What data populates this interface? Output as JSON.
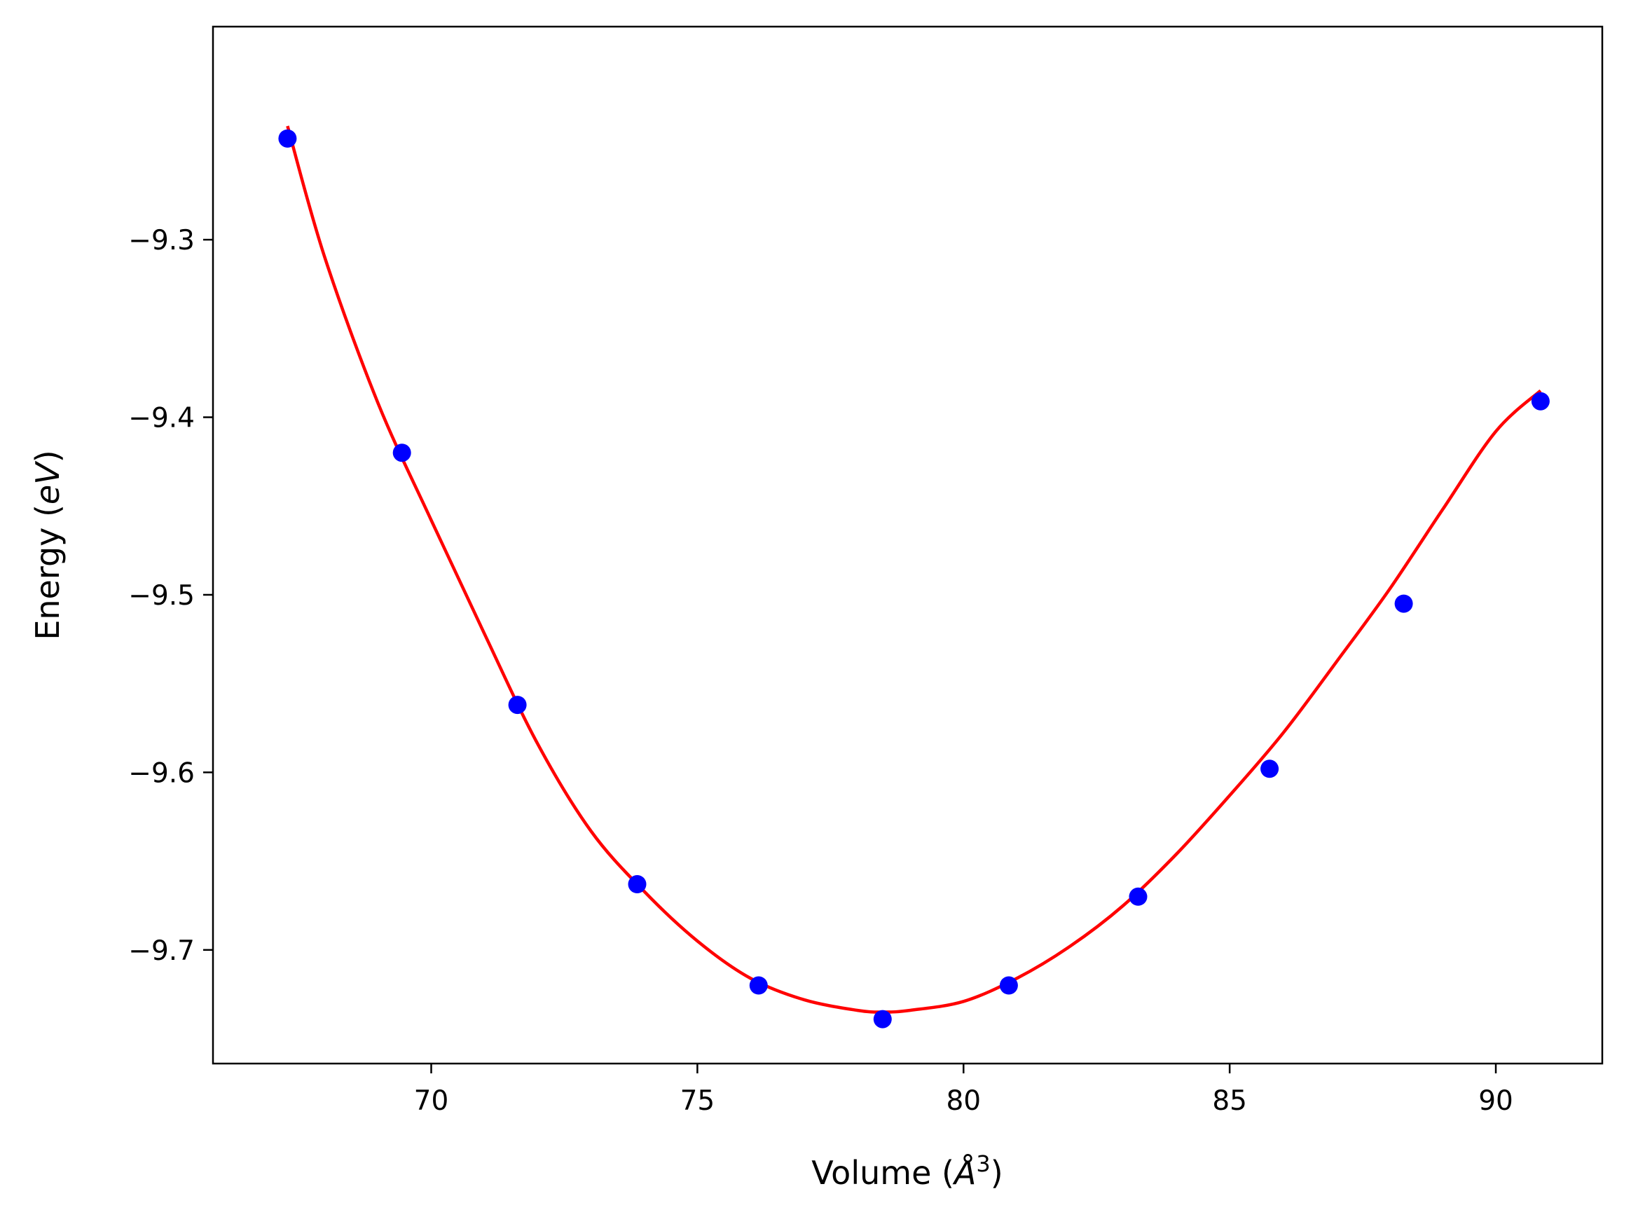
{
  "chart_data": {
    "type": "scatter",
    "title": "",
    "xlabel": "Volume (Å³)",
    "ylabel": "Energy (eV)",
    "xlabel_parts": {
      "prefix": "Volume (",
      "unit_base": "Å",
      "unit_sup": "3",
      "suffix": ")"
    },
    "ylabel_parts": {
      "prefix": "Energy (",
      "unit": "eV",
      "suffix": ")"
    },
    "xlim": [
      65.9,
      92.0
    ],
    "ylim": [
      -9.764,
      -9.18
    ],
    "xticks": [
      70,
      75,
      80,
      85,
      90
    ],
    "xtick_labels": [
      "70",
      "75",
      "80",
      "85",
      "90"
    ],
    "yticks": [
      -9.3,
      -9.4,
      -9.5,
      -9.6,
      -9.7
    ],
    "ytick_labels": [
      "−9.3",
      "−9.4",
      "−9.5",
      "−9.6",
      "−9.7"
    ],
    "grid": false,
    "legend": "none",
    "series": [
      {
        "kind": "scatter",
        "color": "#0000ff",
        "x": [
          67.3,
          69.45,
          71.62,
          73.87,
          76.15,
          78.48,
          80.85,
          83.28,
          85.75,
          88.27,
          90.84
        ],
        "y": [
          -9.243,
          -9.42,
          -9.562,
          -9.663,
          -9.72,
          -9.739,
          -9.72,
          -9.67,
          -9.598,
          -9.505,
          -9.391
        ]
      },
      {
        "kind": "line",
        "color": "#ff0000",
        "x": [
          67.3,
          68.0,
          69.0,
          70.0,
          71.0,
          72.0,
          73.0,
          74.0,
          75.0,
          76.0,
          77.0,
          78.0,
          78.5,
          79.0,
          80.0,
          81.0,
          82.0,
          83.0,
          84.0,
          85.0,
          86.0,
          87.0,
          88.0,
          89.0,
          90.0,
          90.84
        ],
        "y": [
          -9.236,
          -9.31,
          -9.392,
          -9.458,
          -9.522,
          -9.584,
          -9.633,
          -9.667,
          -9.695,
          -9.716,
          -9.728,
          -9.734,
          -9.735,
          -9.734,
          -9.729,
          -9.716,
          -9.698,
          -9.675,
          -9.646,
          -9.613,
          -9.578,
          -9.538,
          -9.497,
          -9.452,
          -9.408,
          -9.385
        ]
      }
    ]
  }
}
